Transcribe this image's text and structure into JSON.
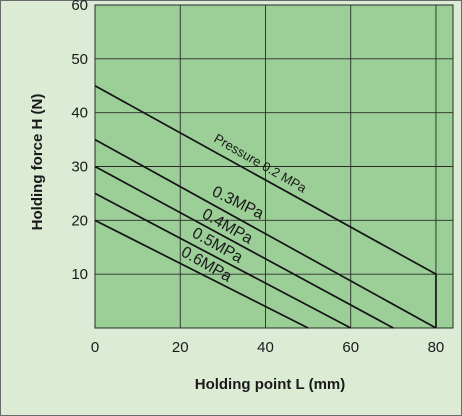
{
  "chart_data": {
    "type": "line",
    "title": "",
    "xlabel": "Holding point L (mm)",
    "ylabel": "Holding force H (N)",
    "xlim": [
      0,
      84
    ],
    "ylim": [
      0,
      60
    ],
    "xticks": [
      0,
      20,
      40,
      60,
      80
    ],
    "yticks": [
      10,
      20,
      30,
      40,
      50,
      60
    ],
    "grid": true,
    "legend": "none",
    "colors": {
      "page_background": "#dcebd4",
      "plot_background": "#9bcf97",
      "grid": "#2a2a2a",
      "line": "#141414",
      "frame": "#6a6a6a"
    },
    "series": [
      {
        "name": "Pressure 0.2 MPa",
        "x": [
          0,
          80,
          80
        ],
        "y": [
          45,
          10,
          0
        ]
      },
      {
        "name": "0.3MPa",
        "x": [
          0,
          80
        ],
        "y": [
          35,
          0
        ]
      },
      {
        "name": "0.4MPa",
        "x": [
          0,
          70
        ],
        "y": [
          30,
          0
        ]
      },
      {
        "name": "0.5MPa",
        "x": [
          0,
          60
        ],
        "y": [
          25,
          0
        ]
      },
      {
        "name": "0.6MPa",
        "x": [
          0,
          50
        ],
        "y": [
          20,
          0
        ]
      }
    ]
  }
}
